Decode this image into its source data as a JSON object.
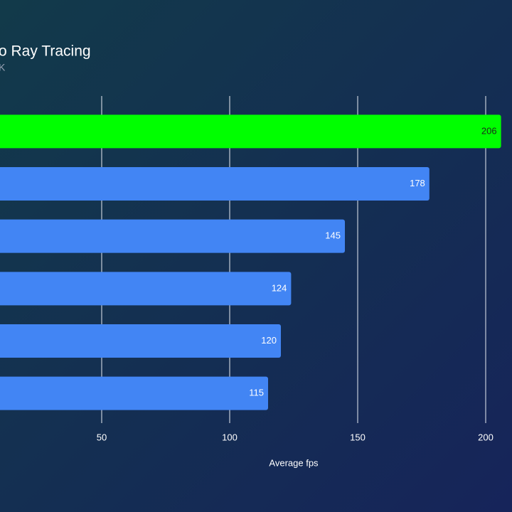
{
  "chart_data": {
    "type": "bar",
    "orientation": "horizontal",
    "title": "o Ray Tracing",
    "subtitle": "K",
    "x_label": "Average fps",
    "categories": [
      null,
      null,
      null,
      null,
      null,
      null
    ],
    "values": [
      206,
      178,
      145,
      124,
      120,
      115
    ],
    "colors": [
      "#00ff00",
      "#4285f4",
      "#4285f4",
      "#4285f4",
      "#4285f4",
      "#4285f4"
    ],
    "xlim": [
      0,
      210
    ],
    "xticks": [
      50,
      100,
      150,
      200
    ],
    "grid": true
  }
}
